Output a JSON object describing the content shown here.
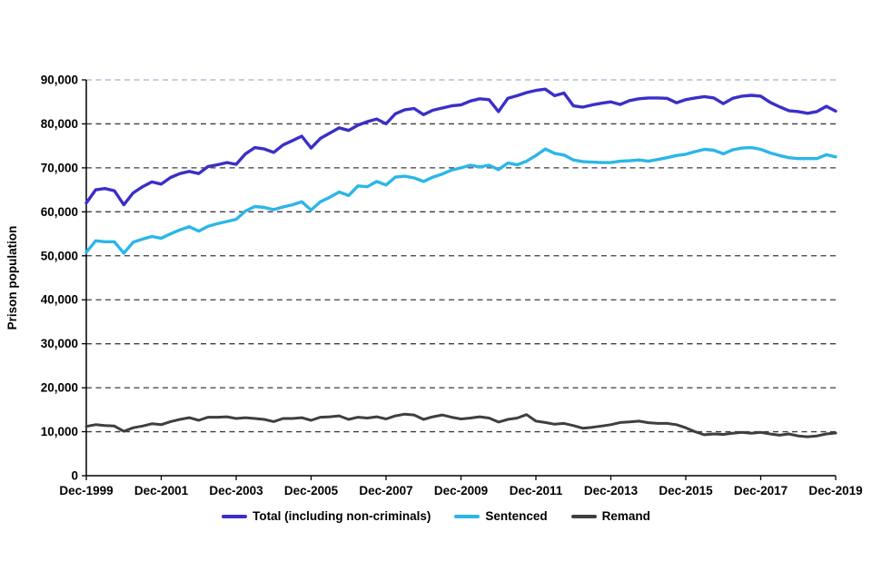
{
  "chart_data": {
    "type": "line",
    "title": "",
    "xlabel": "",
    "ylabel": "Prison population",
    "ylim": [
      0,
      90000
    ],
    "ytick_step": 10000,
    "ytick_values": [
      0,
      10000,
      20000,
      30000,
      40000,
      50000,
      60000,
      70000,
      80000,
      90000
    ],
    "ytick_labels": [
      "0",
      "10,000",
      "20,000",
      "30,000",
      "40,000",
      "50,000",
      "60,000",
      "70,000",
      "80,000",
      "90,000"
    ],
    "xtick_labels": [
      "Dec-1999",
      "Dec-2001",
      "Dec-2003",
      "Dec-2005",
      "Dec-2007",
      "Dec-2009",
      "Dec-2011",
      "Dec-2013",
      "Dec-2015",
      "Dec-2017",
      "Dec-2019"
    ],
    "grid": "horizontal-dashed",
    "legend_position": "bottom-center",
    "colors": {
      "total": "#3b2fc8",
      "sentenced": "#2cb6e8",
      "remand": "#3f3f3f",
      "gridline": "#3d3d3d",
      "top_gridline": "#9fb0cc",
      "axis": "#000000"
    },
    "x": [
      "Dec-1999",
      "Mar-2000",
      "Jun-2000",
      "Sep-2000",
      "Dec-2000",
      "Mar-2001",
      "Jun-2001",
      "Sep-2001",
      "Dec-2001",
      "Mar-2002",
      "Jun-2002",
      "Sep-2002",
      "Dec-2002",
      "Mar-2003",
      "Jun-2003",
      "Sep-2003",
      "Dec-2003",
      "Mar-2004",
      "Jun-2004",
      "Sep-2004",
      "Dec-2004",
      "Mar-2005",
      "Jun-2005",
      "Sep-2005",
      "Dec-2005",
      "Mar-2006",
      "Jun-2006",
      "Sep-2006",
      "Dec-2006",
      "Mar-2007",
      "Jun-2007",
      "Sep-2007",
      "Dec-2007",
      "Mar-2008",
      "Jun-2008",
      "Sep-2008",
      "Dec-2008",
      "Mar-2009",
      "Jun-2009",
      "Sep-2009",
      "Dec-2009",
      "Mar-2010",
      "Jun-2010",
      "Sep-2010",
      "Dec-2010",
      "Mar-2011",
      "Jun-2011",
      "Sep-2011",
      "Dec-2011",
      "Mar-2012",
      "Jun-2012",
      "Sep-2012",
      "Dec-2012",
      "Mar-2013",
      "Jun-2013",
      "Sep-2013",
      "Dec-2013",
      "Mar-2014",
      "Jun-2014",
      "Sep-2014",
      "Dec-2014",
      "Mar-2015",
      "Jun-2015",
      "Sep-2015",
      "Dec-2015",
      "Mar-2016",
      "Jun-2016",
      "Sep-2016",
      "Dec-2016",
      "Mar-2017",
      "Jun-2017",
      "Sep-2017",
      "Dec-2017",
      "Mar-2018",
      "Jun-2018",
      "Sep-2018",
      "Dec-2018",
      "Mar-2019",
      "Jun-2019",
      "Sep-2019",
      "Dec-2019"
    ],
    "series": [
      {
        "name": "Total (including non-criminals)",
        "color": "#3b2fc8",
        "values": [
          62000,
          65000,
          65300,
          64800,
          61600,
          64300,
          65700,
          66800,
          66300,
          67800,
          68700,
          69200,
          68700,
          70300,
          70700,
          71200,
          70800,
          73200,
          74600,
          74300,
          73500,
          75200,
          76200,
          77200,
          74500,
          76700,
          77900,
          79100,
          78500,
          79700,
          80500,
          81100,
          80000,
          82300,
          83200,
          83500,
          82100,
          83100,
          83600,
          84100,
          84300,
          85200,
          85700,
          85500,
          82800,
          85800,
          86400,
          87100,
          87600,
          87900,
          86400,
          87000,
          84100,
          83800,
          84300,
          84700,
          85000,
          84400,
          85300,
          85700,
          85900,
          85900,
          85800,
          84800,
          85500,
          85900,
          86200,
          85900,
          84600,
          85800,
          86300,
          86500,
          86300,
          84900,
          83900,
          83000,
          82800,
          82400,
          82800,
          84000,
          82900
        ]
      },
      {
        "name": "Sentenced",
        "color": "#2cb6e8",
        "values": [
          50800,
          53400,
          53200,
          53200,
          50600,
          53100,
          53800,
          54400,
          54000,
          55000,
          55900,
          56600,
          55600,
          56700,
          57300,
          57800,
          58300,
          60200,
          61200,
          61000,
          60500,
          61100,
          61600,
          62300,
          60400,
          62300,
          63300,
          64500,
          63700,
          65900,
          65700,
          66900,
          66100,
          67900,
          68100,
          67700,
          66900,
          67900,
          68600,
          69500,
          70000,
          70600,
          70200,
          70600,
          69600,
          71100,
          70700,
          71500,
          72800,
          74300,
          73300,
          72900,
          71800,
          71400,
          71300,
          71200,
          71200,
          71500,
          71600,
          71800,
          71500,
          71900,
          72300,
          72800,
          73100,
          73700,
          74200,
          74000,
          73200,
          74100,
          74500,
          74600,
          74200,
          73400,
          72800,
          72300,
          72100,
          72100,
          72100,
          73000,
          72500
        ]
      },
      {
        "name": "Remand",
        "color": "#3f3f3f",
        "values": [
          11200,
          11600,
          11400,
          11300,
          10100,
          10900,
          11300,
          11800,
          11600,
          12300,
          12800,
          13200,
          12600,
          13300,
          13300,
          13400,
          13000,
          13200,
          13000,
          12800,
          12300,
          13000,
          13000,
          13200,
          12600,
          13300,
          13400,
          13600,
          12800,
          13300,
          13100,
          13400,
          12900,
          13600,
          14000,
          13800,
          12800,
          13400,
          13800,
          13300,
          12900,
          13100,
          13400,
          13100,
          12200,
          12800,
          13100,
          13900,
          12400,
          12100,
          11700,
          11900,
          11400,
          10800,
          11000,
          11300,
          11600,
          12100,
          12250,
          12400,
          12050,
          11900,
          11900,
          11600,
          10900,
          10000,
          9300,
          9500,
          9400,
          9650,
          9850,
          9650,
          9850,
          9500,
          9200,
          9500,
          9050,
          8850,
          9050,
          9500,
          9700
        ]
      }
    ]
  }
}
